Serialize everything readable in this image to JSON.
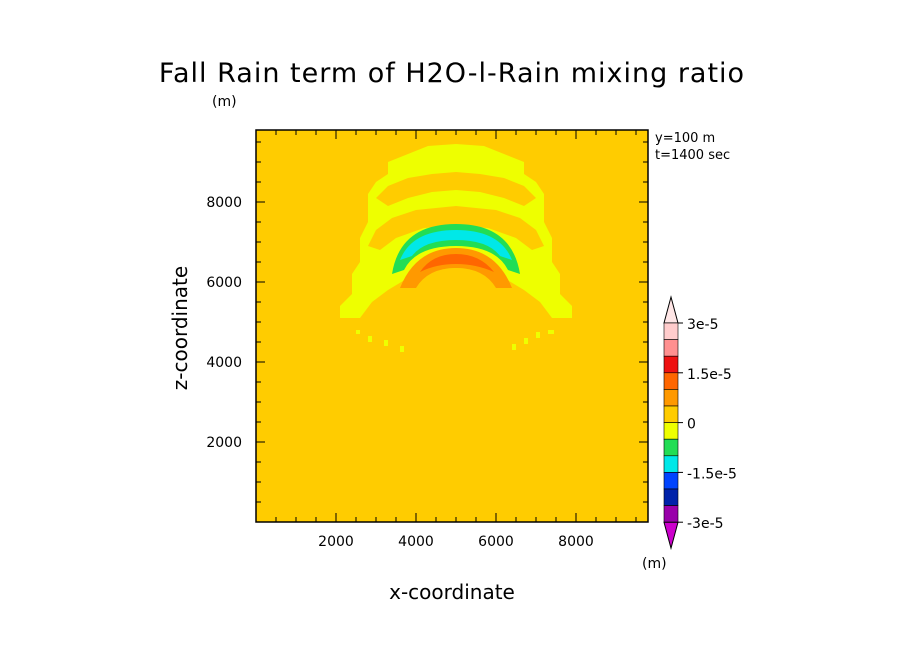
{
  "chart_data": {
    "type": "heatmap",
    "title": "Fall Rain term of H2O-l-Rain mixing ratio",
    "xlabel": "x-coordinate",
    "ylabel": "z-coordinate",
    "x_unit": "(m)",
    "y_unit": "(m)",
    "annotations": [
      "y=100 m",
      "t=1400 sec"
    ],
    "xlim": [
      0,
      9800
    ],
    "ylim": [
      0,
      9800
    ],
    "x_ticks": [
      2000,
      4000,
      6000,
      8000
    ],
    "y_ticks": [
      2000,
      4000,
      6000,
      8000
    ],
    "background_level": "0 to 0.75e-5",
    "features": [
      {
        "level": "0 to -0.75e-5",
        "color": "#eeff00",
        "shape": "arc",
        "center_x": 5000,
        "center_z": 5600,
        "extent": "x 2100-7800, z 5100-9400"
      },
      {
        "level": "-0.75e-5 to -1.5e-5",
        "color": "#22dd55",
        "shape": "arc",
        "center_x": 5000,
        "center_z": 6500,
        "extent": "x 3400-6600, z 6200-7400"
      },
      {
        "level": "-1.5e-5 to -2.25e-5",
        "color": "#00e8e8",
        "shape": "arc",
        "center_x": 5000,
        "center_z": 6700,
        "extent": "x 3600-6400, z 6400-7300"
      },
      {
        "level": "0.75e-5 to 1.5e-5",
        "color": "#ff9900",
        "shape": "arc",
        "center_x": 5000,
        "center_z": 6000,
        "extent": "x 3600-6400, z 5800-6800"
      },
      {
        "level": "1.5e-5 to 2.25e-5",
        "color": "#ff6600",
        "shape": "arc",
        "center_x": 5000,
        "center_z": 6300,
        "extent": "x 4100-6000, z 6200-6600"
      }
    ],
    "colorbar": {
      "labels": [
        "3e-5",
        "1.5e-5",
        "0",
        "-1.5e-5",
        "-3e-5"
      ],
      "colors": [
        "#ffcccc",
        "#ff9090",
        "#ee1111",
        "#ff6600",
        "#ff9900",
        "#ffcc00",
        "#eeff00",
        "#22dd55",
        "#00e8e8",
        "#0044ff",
        "#0022aa",
        "#9900aa"
      ],
      "top_triangle": "#ffe6e6",
      "bottom_triangle": "#cc00cc"
    }
  }
}
